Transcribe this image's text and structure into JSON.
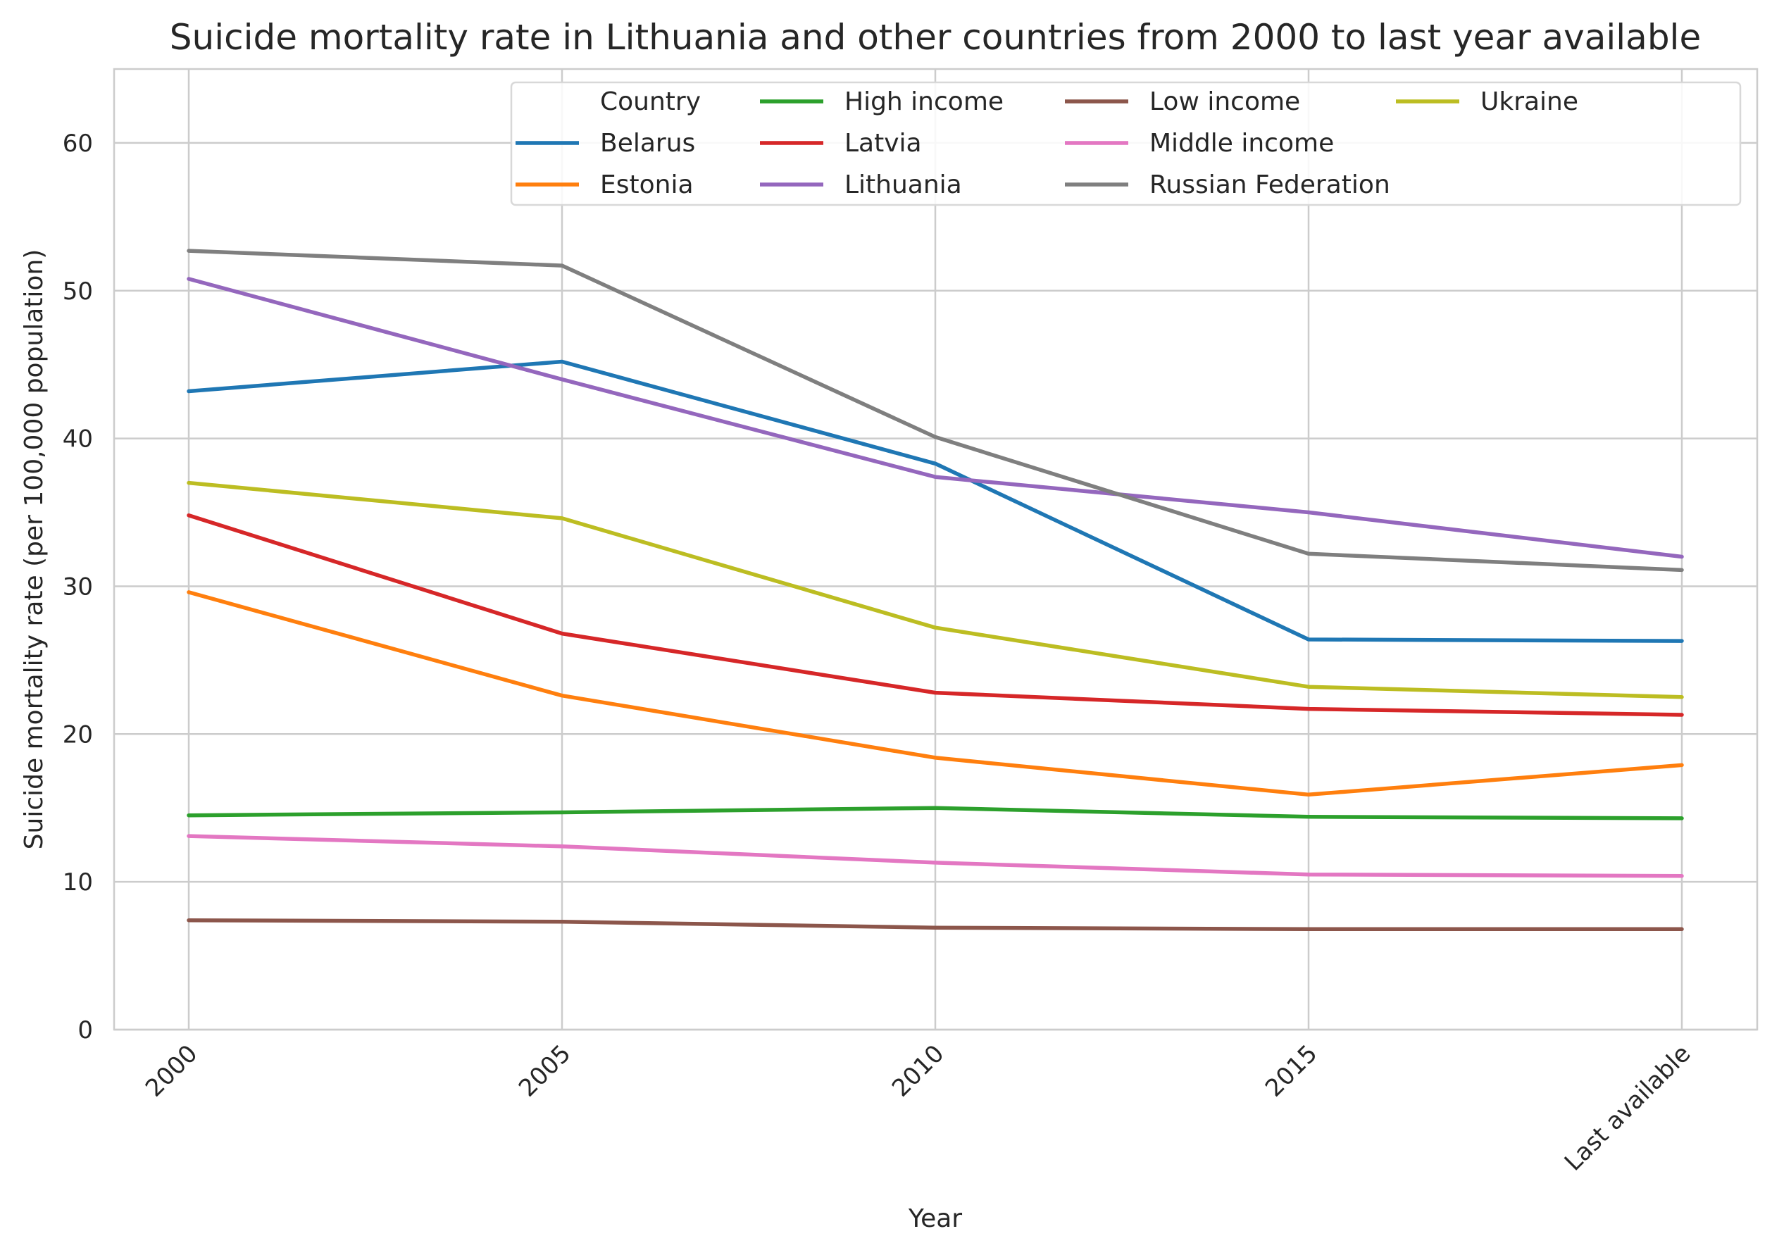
{
  "chart_data": {
    "type": "line",
    "title": "Suicide mortality rate in Lithuania and other countries from 2000 to last year available",
    "xlabel": "Year",
    "ylabel": "Suicide mortality rate (per 100,000 population)",
    "categories": [
      "2000",
      "2005",
      "2010",
      "2015",
      "Last available"
    ],
    "ylim": [
      0,
      65
    ],
    "yticks": [
      0,
      10,
      20,
      30,
      40,
      50,
      60
    ],
    "grid": true,
    "legend": {
      "title": "Country",
      "placement": "top-right",
      "columns": 4
    },
    "series": [
      {
        "name": "Belarus",
        "color": "#1f77b4",
        "values": [
          43.2,
          45.2,
          38.3,
          26.4,
          26.3
        ]
      },
      {
        "name": "Estonia",
        "color": "#ff7f0e",
        "values": [
          29.6,
          22.6,
          18.4,
          15.9,
          17.9
        ]
      },
      {
        "name": "High income",
        "color": "#2ca02c",
        "values": [
          14.5,
          14.7,
          15.0,
          14.4,
          14.3
        ]
      },
      {
        "name": "Latvia",
        "color": "#d62728",
        "values": [
          34.8,
          26.8,
          22.8,
          21.7,
          21.3
        ]
      },
      {
        "name": "Lithuania",
        "color": "#9467bd",
        "values": [
          50.8,
          44.0,
          37.4,
          35.0,
          32.0
        ]
      },
      {
        "name": "Low income",
        "color": "#8c564b",
        "values": [
          7.4,
          7.3,
          6.9,
          6.8,
          6.8
        ]
      },
      {
        "name": "Middle income",
        "color": "#e377c2",
        "values": [
          13.1,
          12.4,
          11.3,
          10.5,
          10.4
        ]
      },
      {
        "name": "Russian Federation",
        "color": "#7f7f7f",
        "values": [
          52.7,
          51.7,
          40.1,
          32.2,
          31.1
        ]
      },
      {
        "name": "Ukraine",
        "color": "#bcbd22",
        "values": [
          37.0,
          34.6,
          27.2,
          23.2,
          22.5
        ]
      }
    ]
  }
}
